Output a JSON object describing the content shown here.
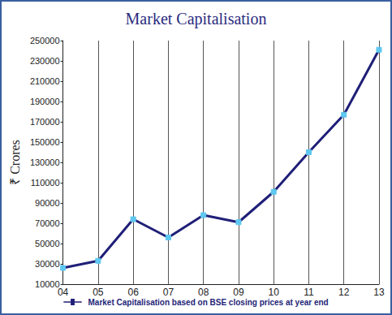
{
  "chart_data": {
    "type": "line",
    "title": "Market Capitalisation",
    "y_label": "₹ Crores",
    "categories": [
      "04",
      "05",
      "06",
      "07",
      "08",
      "09",
      "10",
      "11",
      "12",
      "13"
    ],
    "series": [
      {
        "name": "Market Capitalisation based on BSE closing prices at year end",
        "color": "#1f1f78",
        "marker": "square",
        "values": [
          26000,
          33000,
          74000,
          56000,
          78000,
          71000,
          101000,
          140000,
          177000,
          241000
        ]
      }
    ],
    "ylim": [
      10000,
      250000
    ],
    "yticks": [
      10000,
      30000,
      50000,
      70000,
      90000,
      110000,
      130000,
      150000,
      170000,
      190000,
      210000,
      230000,
      250000
    ],
    "grid": true,
    "legend": "bottom"
  }
}
